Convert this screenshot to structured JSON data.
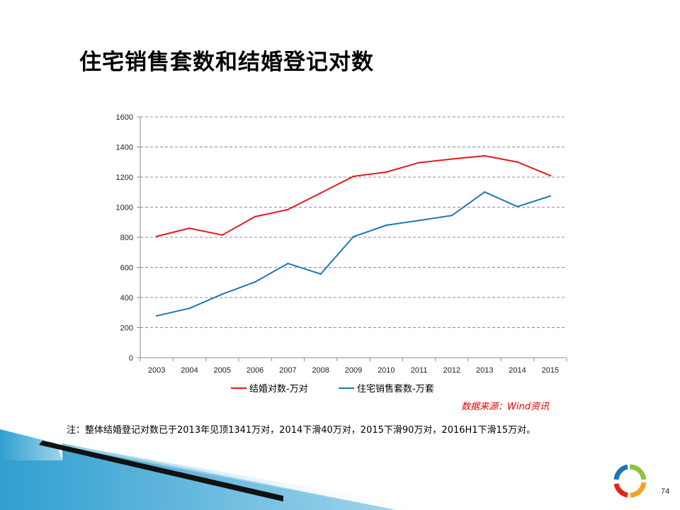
{
  "slide": {
    "title": "住宅销售套数和结婚登记对数",
    "source": "数据来源：Wind资讯",
    "note": "注：整体结婚登记对数已于2013年见顶1341万对，2014下滑40万对，2015下滑90万对，2016H1下滑15万对。",
    "page_number": "74"
  },
  "chart_data": {
    "type": "line",
    "categories": [
      "2003",
      "2004",
      "2005",
      "2006",
      "2007",
      "2008",
      "2009",
      "2010",
      "2011",
      "2012",
      "2013",
      "2014",
      "2015"
    ],
    "series": [
      {
        "name": "结婚对数-万对",
        "color": "#e41a1c",
        "values": [
          806,
          860,
          815,
          937,
          984,
          1094,
          1205,
          1233,
          1296,
          1320,
          1341,
          1300,
          1210
        ]
      },
      {
        "name": "住宅销售套数-万套",
        "color": "#1f77b4",
        "values": [
          278,
          328,
          422,
          503,
          626,
          556,
          804,
          880,
          912,
          945,
          1101,
          1004,
          1074
        ]
      }
    ],
    "ylim": [
      0,
      1600
    ],
    "yticks": [
      0,
      200,
      400,
      600,
      800,
      1000,
      1200,
      1400,
      1600
    ],
    "grid": "dashed horizontal",
    "legend": "bottom-center"
  }
}
